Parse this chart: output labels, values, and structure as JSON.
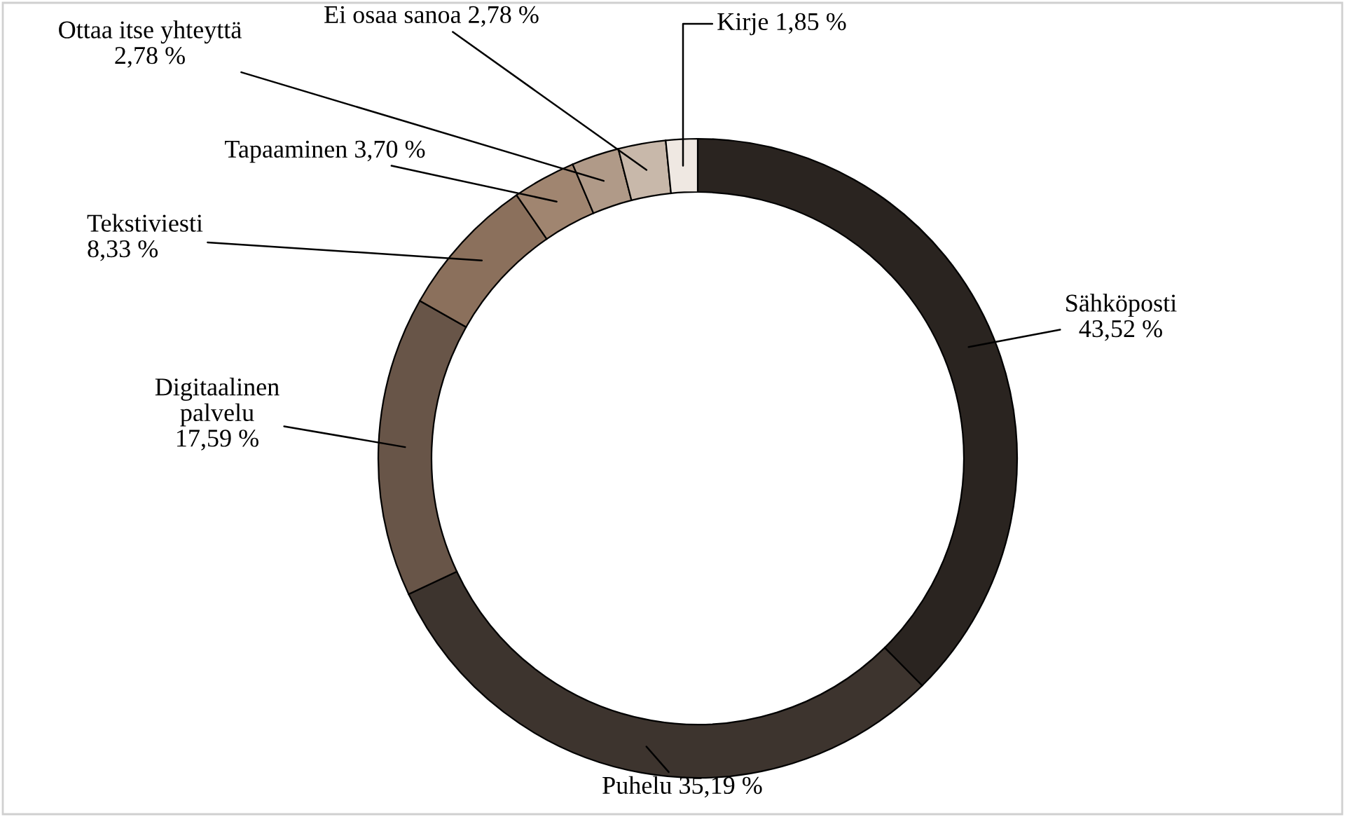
{
  "chart_data": {
    "type": "donut",
    "categories": [
      "Sähköposti",
      "Puhelu",
      "Digitaalinen palvelu",
      "Tekstiviesti",
      "Tapaaminen",
      "Ottaa itse yhteyttä",
      "Ei osaa sanoa",
      "Kirje"
    ],
    "values": [
      43.52,
      35.19,
      17.59,
      8.33,
      3.7,
      2.78,
      2.78,
      1.85
    ],
    "value_labels": [
      "43,52 %",
      "35,19 %",
      "17,59 %",
      "8,33 %",
      "3,70 %",
      "2,78 %",
      "2,78 %",
      "1,85 %"
    ],
    "colors": [
      "#2a2420",
      "#3d342e",
      "#685548",
      "#8b705c",
      "#a08570",
      "#b09a88",
      "#c8b8aa",
      "#efe8e2"
    ],
    "legend": false
  }
}
